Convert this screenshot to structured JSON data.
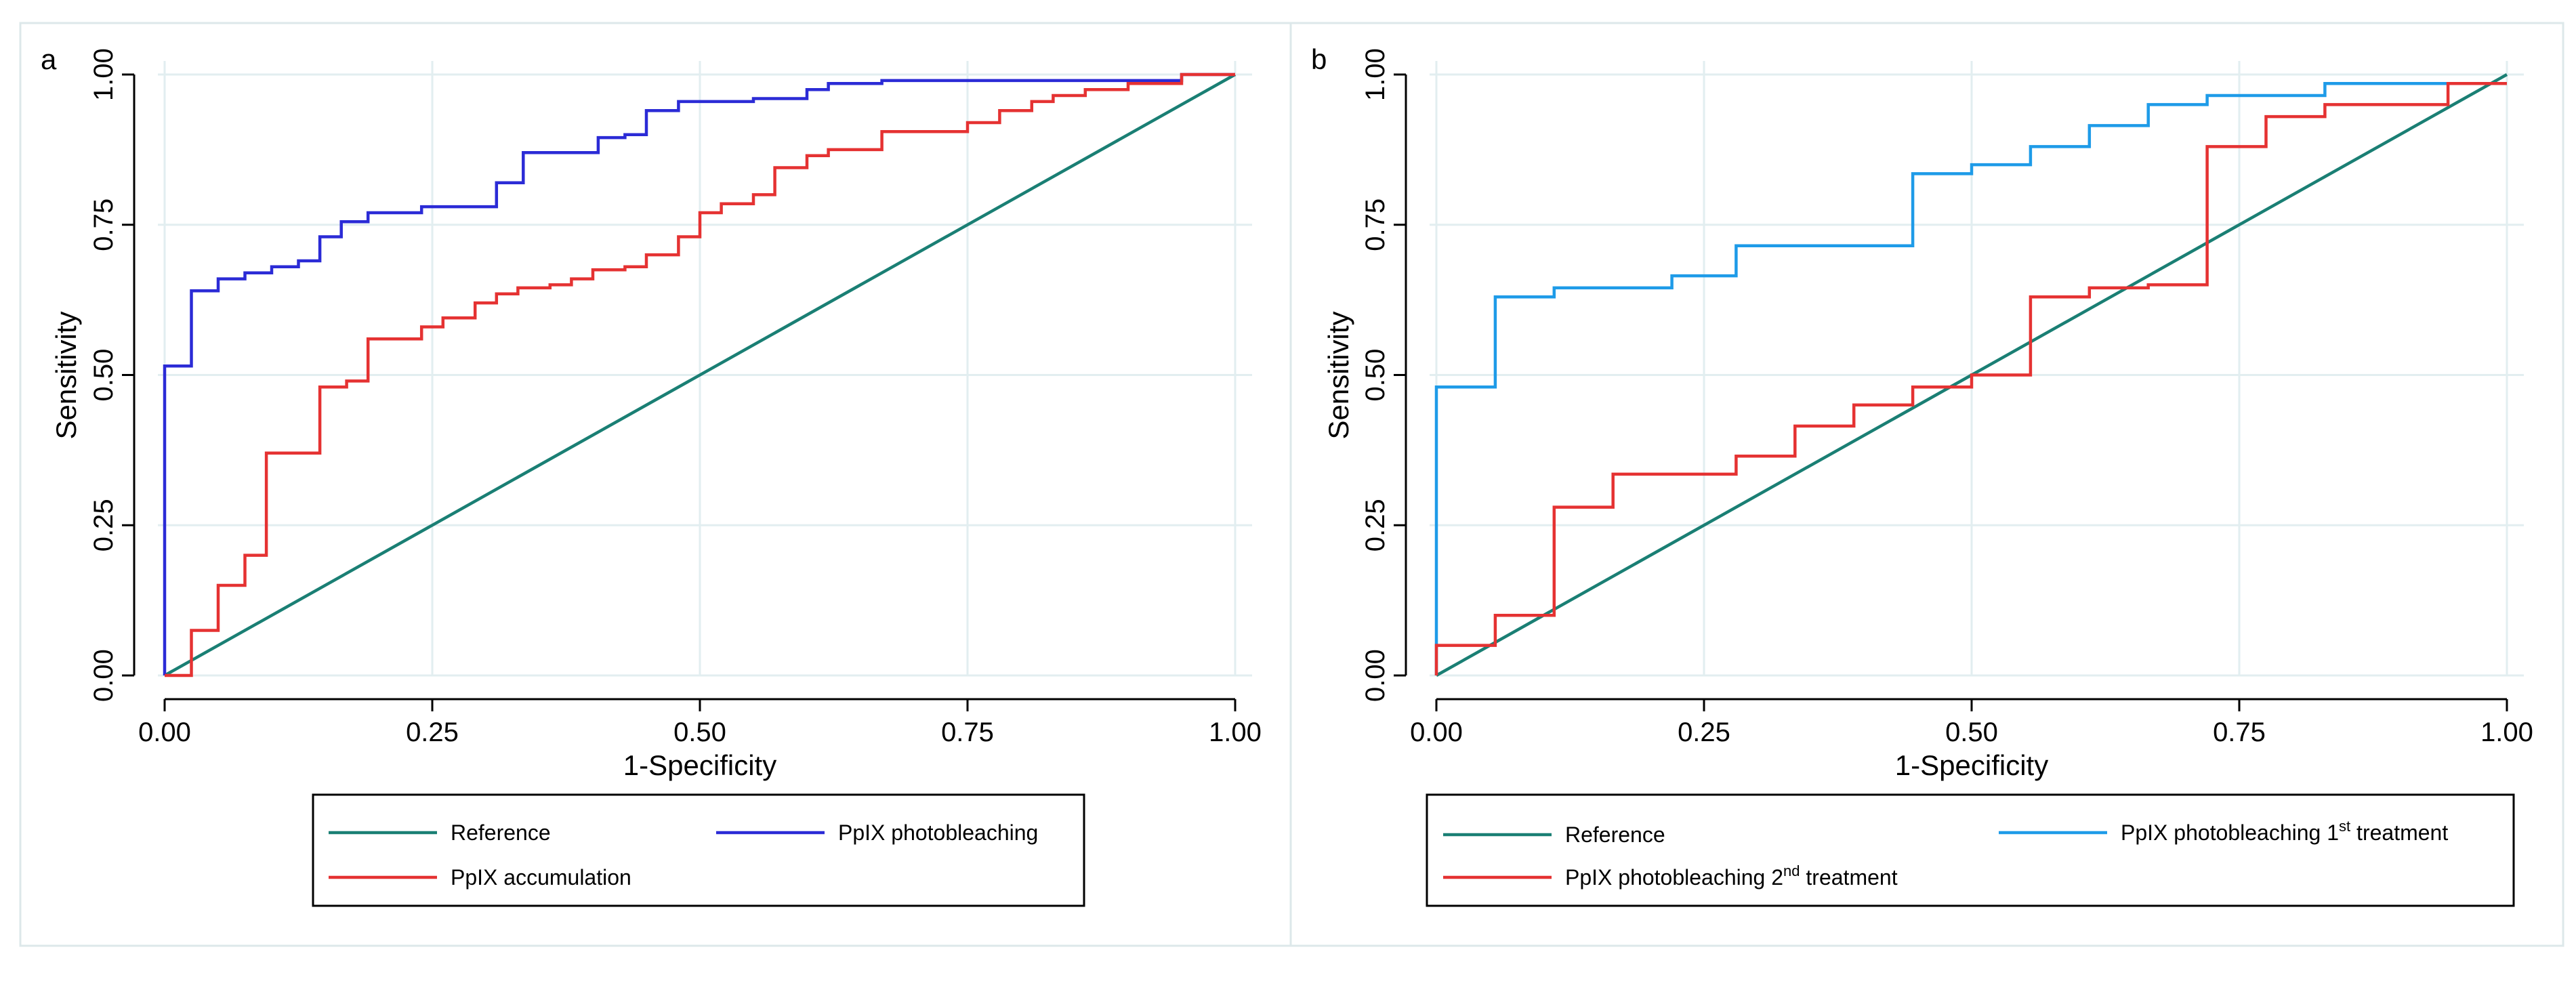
{
  "chart_data": [
    {
      "panel_label": "a",
      "type": "line",
      "xlabel": "1-Specificity",
      "ylabel": "Sensitivity",
      "xlim": [
        0,
        1
      ],
      "ylim": [
        0,
        1
      ],
      "xticks": [
        "0.00",
        "0.25",
        "0.50",
        "0.75",
        "1.00"
      ],
      "yticks": [
        "0.00",
        "0.25",
        "0.50",
        "0.75",
        "1.00"
      ],
      "grid": true,
      "legend_position": "bottom",
      "series": [
        {
          "name": "Reference",
          "color": "#1a7f74",
          "x": [
            0,
            1
          ],
          "y": [
            0,
            1
          ]
        },
        {
          "name": "PpIX photobleaching",
          "color": "#2b2bd6",
          "x": [
            0,
            0,
            0.025,
            0.025,
            0.05,
            0.05,
            0.075,
            0.075,
            0.1,
            0.1,
            0.125,
            0.125,
            0.145,
            0.145,
            0.165,
            0.165,
            0.19,
            0.19,
            0.24,
            0.24,
            0.31,
            0.31,
            0.335,
            0.335,
            0.405,
            0.405,
            0.43,
            0.43,
            0.45,
            0.45,
            0.48,
            0.48,
            0.55,
            0.55,
            0.6,
            0.6,
            0.62,
            0.62,
            0.67,
            0.67,
            0.95,
            0.95,
            1.0
          ],
          "y": [
            0,
            0.515,
            0.515,
            0.64,
            0.64,
            0.66,
            0.66,
            0.67,
            0.67,
            0.68,
            0.68,
            0.69,
            0.69,
            0.73,
            0.73,
            0.755,
            0.755,
            0.77,
            0.77,
            0.78,
            0.78,
            0.82,
            0.82,
            0.87,
            0.87,
            0.895,
            0.895,
            0.9,
            0.9,
            0.94,
            0.94,
            0.955,
            0.955,
            0.96,
            0.96,
            0.975,
            0.975,
            0.985,
            0.985,
            0.99,
            0.99,
            1.0,
            1.0
          ]
        },
        {
          "name": "PpIX accumulation",
          "color": "#e53232",
          "x": [
            0,
            0.025,
            0.025,
            0.05,
            0.05,
            0.075,
            0.075,
            0.095,
            0.095,
            0.145,
            0.145,
            0.17,
            0.17,
            0.19,
            0.19,
            0.24,
            0.24,
            0.26,
            0.26,
            0.29,
            0.29,
            0.31,
            0.31,
            0.33,
            0.33,
            0.36,
            0.36,
            0.38,
            0.38,
            0.4,
            0.4,
            0.43,
            0.43,
            0.45,
            0.45,
            0.48,
            0.48,
            0.5,
            0.5,
            0.52,
            0.52,
            0.55,
            0.55,
            0.57,
            0.57,
            0.6,
            0.6,
            0.62,
            0.62,
            0.67,
            0.67,
            0.75,
            0.75,
            0.78,
            0.78,
            0.81,
            0.81,
            0.83,
            0.83,
            0.86,
            0.86,
            0.9,
            0.9,
            0.95,
            0.95,
            1.0
          ],
          "y": [
            0,
            0,
            0.075,
            0.075,
            0.15,
            0.15,
            0.2,
            0.2,
            0.37,
            0.37,
            0.48,
            0.48,
            0.49,
            0.49,
            0.56,
            0.56,
            0.58,
            0.58,
            0.595,
            0.595,
            0.62,
            0.62,
            0.635,
            0.635,
            0.645,
            0.645,
            0.65,
            0.65,
            0.66,
            0.66,
            0.675,
            0.675,
            0.68,
            0.68,
            0.7,
            0.7,
            0.73,
            0.73,
            0.77,
            0.77,
            0.785,
            0.785,
            0.8,
            0.8,
            0.845,
            0.845,
            0.865,
            0.865,
            0.875,
            0.875,
            0.905,
            0.905,
            0.92,
            0.92,
            0.94,
            0.94,
            0.955,
            0.955,
            0.965,
            0.965,
            0.975,
            0.975,
            0.985,
            0.985,
            1.0,
            1.0
          ]
        }
      ]
    },
    {
      "panel_label": "b",
      "type": "line",
      "xlabel": "1-Specificity",
      "ylabel": "Sensitivity",
      "xlim": [
        0,
        1
      ],
      "ylim": [
        0,
        1
      ],
      "xticks": [
        "0.00",
        "0.25",
        "0.50",
        "0.75",
        "1.00"
      ],
      "yticks": [
        "0.00",
        "0.25",
        "0.50",
        "0.75",
        "1.00"
      ],
      "grid": true,
      "legend_position": "bottom",
      "series": [
        {
          "name": "Reference",
          "color": "#1a7f74",
          "x": [
            0,
            1
          ],
          "y": [
            0,
            1
          ]
        },
        {
          "name": "PpIX photobleaching 1st treatment",
          "legend_base": "PpIX photobleaching 1",
          "legend_sup": "st",
          "legend_tail": " treatment",
          "color": "#1e9be8",
          "x": [
            0,
            0,
            0.055,
            0.055,
            0.11,
            0.11,
            0.22,
            0.22,
            0.28,
            0.28,
            0.445,
            0.445,
            0.5,
            0.5,
            0.555,
            0.555,
            0.61,
            0.61,
            0.665,
            0.665,
            0.72,
            0.72,
            0.83,
            0.83,
            1.0
          ],
          "y": [
            0,
            0.48,
            0.48,
            0.63,
            0.63,
            0.645,
            0.645,
            0.665,
            0.665,
            0.715,
            0.715,
            0.835,
            0.835,
            0.85,
            0.85,
            0.88,
            0.88,
            0.915,
            0.915,
            0.95,
            0.95,
            0.965,
            0.965,
            0.985,
            0.985
          ]
        },
        {
          "name": "PpIX photobleaching 2nd treatment",
          "legend_base": "PpIX photobleaching 2",
          "legend_sup": "nd",
          "legend_tail": " treatment",
          "color": "#e53232",
          "x": [
            0,
            0,
            0.055,
            0.055,
            0.11,
            0.11,
            0.165,
            0.165,
            0.28,
            0.28,
            0.335,
            0.335,
            0.39,
            0.39,
            0.445,
            0.445,
            0.5,
            0.5,
            0.555,
            0.555,
            0.61,
            0.61,
            0.665,
            0.665,
            0.72,
            0.72,
            0.775,
            0.775,
            0.83,
            0.83,
            0.945,
            0.945,
            1.0
          ],
          "y": [
            0,
            0.05,
            0.05,
            0.1,
            0.1,
            0.28,
            0.28,
            0.335,
            0.335,
            0.365,
            0.365,
            0.415,
            0.415,
            0.45,
            0.45,
            0.48,
            0.48,
            0.5,
            0.5,
            0.63,
            0.63,
            0.645,
            0.645,
            0.65,
            0.65,
            0.88,
            0.88,
            0.93,
            0.93,
            0.95,
            0.95,
            0.985,
            0.985
          ]
        }
      ]
    }
  ]
}
